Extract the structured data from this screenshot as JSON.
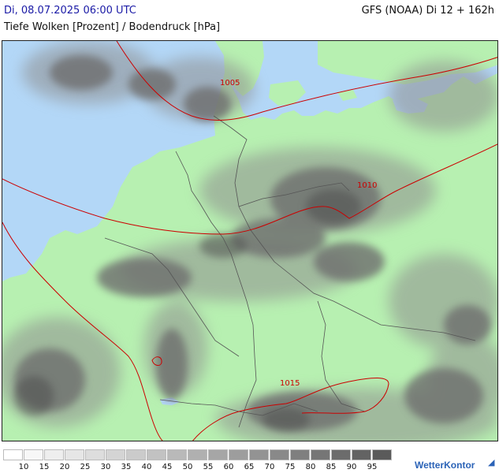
{
  "header": {
    "datetime": "Di, 08.07.2025 06:00 UTC",
    "model": "GFS (NOAA) Di 12 + 162h",
    "subtitle": "Tiefe Wolken [Prozent] / Bodendruck [hPa]"
  },
  "isobars": [
    {
      "label": "1005"
    },
    {
      "label": "1010"
    },
    {
      "label": "1015"
    }
  ],
  "colors": {
    "land": "#b7f0b1",
    "water": "#b3d7f7",
    "isobar": "#cc0000",
    "border": "#555555"
  },
  "legend": {
    "labels": [
      "10",
      "15",
      "20",
      "25",
      "30",
      "35",
      "40",
      "45",
      "50",
      "55",
      "60",
      "65",
      "70",
      "75",
      "80",
      "85",
      "90",
      "95"
    ],
    "colors": [
      "#ffffff",
      "#f7f7f7",
      "#eeeeee",
      "#e6e6e6",
      "#dddddd",
      "#d4d4d4",
      "#cbcbcb",
      "#c2c2c2",
      "#b9b9b9",
      "#b0b0b0",
      "#a6a6a6",
      "#9d9d9d",
      "#939393",
      "#898989",
      "#7f7f7f",
      "#767676",
      "#6c6c6c",
      "#636363",
      "#5a5a5a"
    ]
  },
  "brand": "WetterKontor"
}
